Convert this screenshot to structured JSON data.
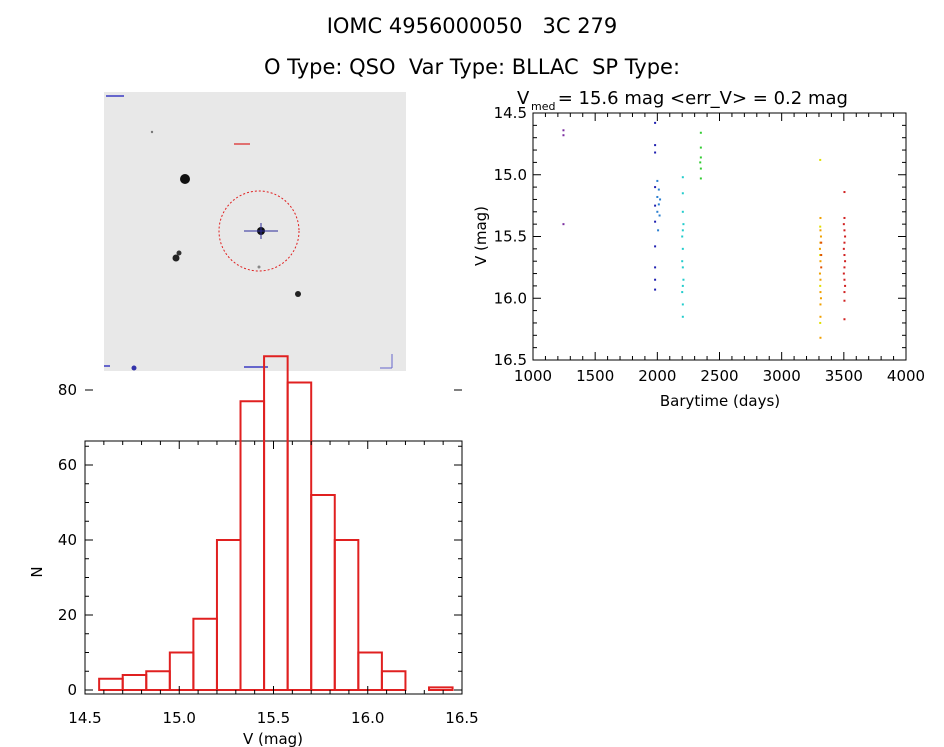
{
  "header": {
    "title": "IOMC 4956000050   3C 279",
    "subtitle": "O Type: QSO  Var Type: BLLAC  SP Type:"
  },
  "lightcurve": {
    "stat_v": "V",
    "stat_med": "med",
    "stat_text": " = 15.6 mag <err_V> = 0.2 mag",
    "xlabel": "Barytime (days)",
    "ylabel": "V (mag)",
    "xlim": [
      1000,
      4000
    ],
    "ylim": [
      16.5,
      14.5
    ],
    "xticks": [
      "1000",
      "1500",
      "2000",
      "2500",
      "3000",
      "3500",
      "4000"
    ],
    "yticks": [
      "14.5",
      "15.0",
      "15.5",
      "16.0",
      "16.5"
    ]
  },
  "histogram": {
    "xlabel": "V (mag)",
    "ylabel": "N",
    "xticks": [
      "14.5",
      "15.0",
      "15.5",
      "16.0",
      "16.5"
    ],
    "yticks": [
      "0",
      "20",
      "40",
      "60",
      "80"
    ]
  },
  "colors": {
    "histogram_bars": "#e02020",
    "aperture_circle": "#e02020",
    "crosshair": "#2a2a9a"
  },
  "chart_data": [
    {
      "type": "scatter",
      "title": "V = 15.6 mag <err_V> = 0.2 mag",
      "xlabel": "Barytime (days)",
      "ylabel": "V (mag)",
      "xlim": [
        1000,
        4000
      ],
      "ylim": [
        16.5,
        14.5
      ],
      "y_inverted": true,
      "series": [
        {
          "color": "#7b2fa0",
          "points": [
            [
              1245,
              14.64
            ],
            [
              1245,
              14.68
            ],
            [
              1245,
              15.4
            ]
          ]
        },
        {
          "color": "#2020b0",
          "points": [
            [
              1982,
              14.58
            ],
            [
              1982,
              14.76
            ],
            [
              1982,
              14.82
            ],
            [
              1982,
              15.1
            ],
            [
              1982,
              15.25
            ],
            [
              1982,
              15.38
            ],
            [
              1982,
              15.58
            ],
            [
              1982,
              15.75
            ],
            [
              1982,
              15.85
            ],
            [
              1982,
              15.93
            ]
          ]
        },
        {
          "color": "#2a7fd0",
          "points": [
            [
              2000,
              15.05
            ],
            [
              2000,
              15.18
            ],
            [
              2000,
              15.3
            ],
            [
              2012,
              15.12
            ],
            [
              2012,
              15.24
            ],
            [
              2018,
              15.33
            ],
            [
              2006,
              15.45
            ],
            [
              2022,
              15.2
            ]
          ]
        },
        {
          "color": "#22cccc",
          "points": [
            [
              2205,
              15.02
            ],
            [
              2205,
              15.15
            ],
            [
              2205,
              15.3
            ],
            [
              2205,
              15.45
            ],
            [
              2205,
              15.6
            ],
            [
              2205,
              15.75
            ],
            [
              2205,
              15.9
            ],
            [
              2205,
              16.05
            ],
            [
              2205,
              16.15
            ],
            [
              2200,
              15.5
            ],
            [
              2200,
              15.7
            ],
            [
              2200,
              15.95
            ],
            [
              2210,
              15.4
            ],
            [
              2210,
              15.85
            ]
          ]
        },
        {
          "color": "#33cc33",
          "points": [
            [
              2350,
              14.66
            ],
            [
              2350,
              14.78
            ],
            [
              2350,
              14.86
            ],
            [
              2350,
              14.95
            ],
            [
              2350,
              15.03
            ],
            [
              2345,
              14.9
            ]
          ]
        },
        {
          "color": "#e0e000",
          "points": [
            [
              3310,
              14.88
            ],
            [
              3310,
              15.42
            ],
            [
              3310,
              15.65
            ],
            [
              3310,
              15.9
            ],
            [
              3310,
              16.2
            ]
          ]
        },
        {
          "color": "#f0a000",
          "points": [
            [
              3312,
              15.35
            ],
            [
              3312,
              15.45
            ],
            [
              3312,
              15.55
            ],
            [
              3312,
              15.7
            ],
            [
              3312,
              15.85
            ],
            [
              3312,
              15.95
            ],
            [
              3312,
              16.05
            ],
            [
              3312,
              16.15
            ],
            [
              3312,
              16.32
            ],
            [
              3308,
              15.6
            ],
            [
              3308,
              15.8
            ],
            [
              3316,
              15.5
            ],
            [
              3316,
              16.0
            ]
          ]
        },
        {
          "color": "#e05000",
          "points": [
            [
              3318,
              15.55
            ],
            [
              3318,
              15.65
            ],
            [
              3318,
              15.75
            ]
          ]
        },
        {
          "color": "#d02020",
          "points": [
            [
              3505,
              15.14
            ],
            [
              3505,
              15.35
            ],
            [
              3505,
              15.45
            ],
            [
              3505,
              15.55
            ],
            [
              3505,
              15.65
            ],
            [
              3505,
              15.75
            ],
            [
              3505,
              15.85
            ],
            [
              3505,
              15.95
            ],
            [
              3505,
              16.02
            ],
            [
              3505,
              16.17
            ],
            [
              3500,
              15.4
            ],
            [
              3500,
              15.6
            ],
            [
              3500,
              15.8
            ],
            [
              3510,
              15.5
            ],
            [
              3510,
              15.7
            ],
            [
              3510,
              15.9
            ]
          ]
        }
      ]
    },
    {
      "type": "bar",
      "title": "",
      "xlabel": "V (mag)",
      "ylabel": "N",
      "xlim": [
        14.5,
        16.5
      ],
      "ylim": [
        0,
        90
      ],
      "bin_width": 0.125,
      "bin_starts": [
        14.575,
        14.7,
        14.825,
        14.95,
        15.075,
        15.2,
        15.325,
        15.45,
        15.575,
        15.7,
        15.825,
        15.95,
        16.075,
        16.2,
        16.325
      ],
      "values": [
        3,
        4,
        5,
        10,
        19,
        40,
        77,
        89,
        82,
        52,
        40,
        10,
        5,
        0,
        0.7
      ]
    }
  ]
}
